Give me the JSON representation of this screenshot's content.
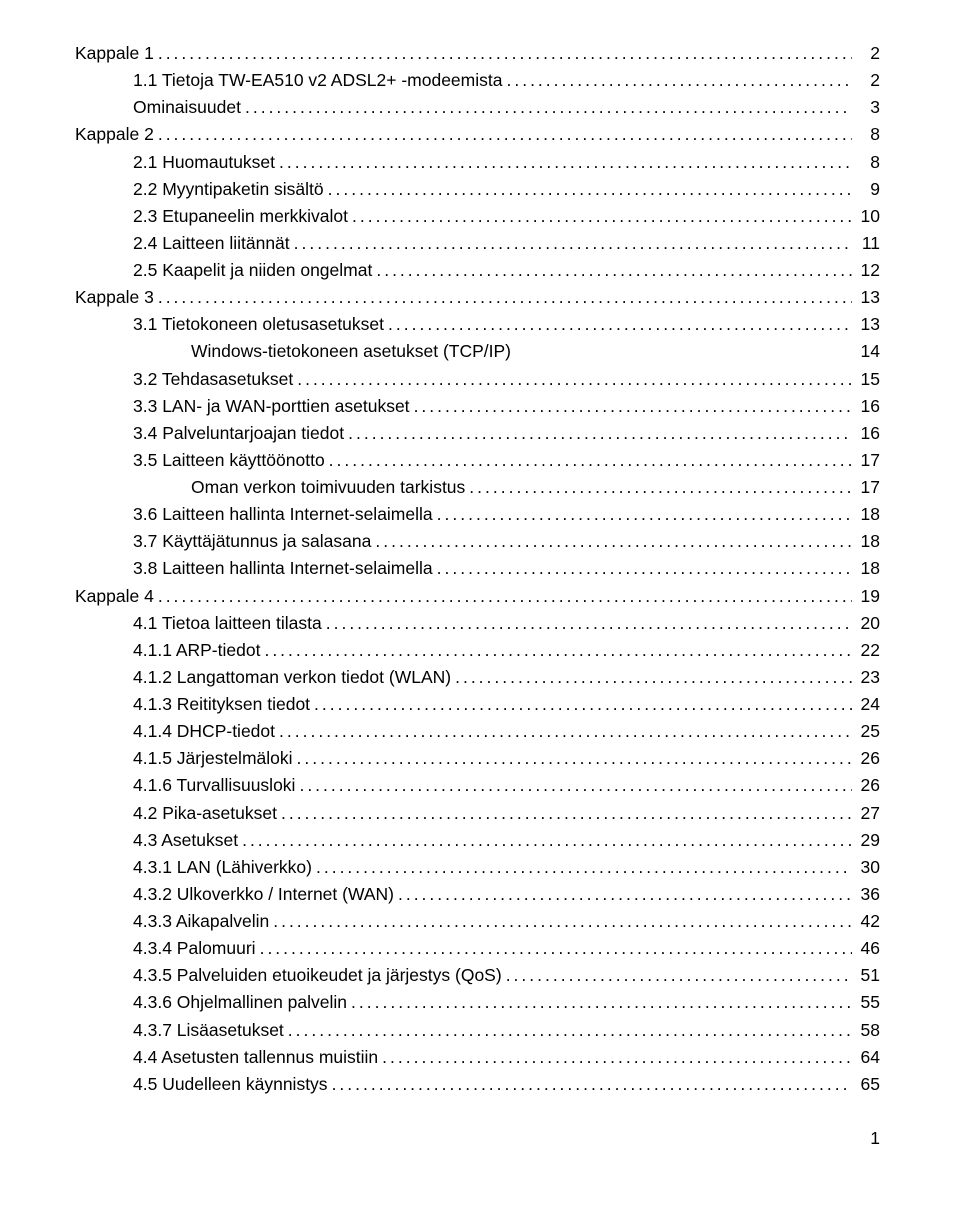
{
  "page_number": "1",
  "font_family": "Verdana, Geneva, sans-serif",
  "text_color": "#000000",
  "background_color": "#ffffff",
  "font_size_pt": 13,
  "entries": [
    {
      "indent": 0,
      "label": "Kappale 1",
      "page": "2",
      "dots": true
    },
    {
      "indent": 1,
      "label": "1.1 Tietoja TW-EA510 v2 ADSL2+ -modeemista",
      "page": "2",
      "dots": true
    },
    {
      "indent": 1,
      "label": "Ominaisuudet",
      "page": "3",
      "dots": true
    },
    {
      "indent": 0,
      "label": "Kappale 2",
      "page": "8",
      "dots": true
    },
    {
      "indent": 1,
      "label": "2.1 Huomautukset",
      "page": "8",
      "dots": true
    },
    {
      "indent": 1,
      "label": "2.2 Myyntipaketin sisältö",
      "page": "9",
      "dots": true
    },
    {
      "indent": 1,
      "label": "2.3 Etupaneelin merkkivalot",
      "page": "10",
      "dots": true
    },
    {
      "indent": 1,
      "label": "2.4 Laitteen liitännät",
      "page": "11",
      "dots": true
    },
    {
      "indent": 1,
      "label": "2.5 Kaapelit ja niiden ongelmat",
      "page": "12",
      "dots": true
    },
    {
      "indent": 0,
      "label": "Kappale 3",
      "page": "13",
      "dots": true
    },
    {
      "indent": 1,
      "label": "3.1 Tietokoneen oletusasetukset",
      "page": "13",
      "dots": true
    },
    {
      "indent": 2,
      "label": "Windows-tietokoneen asetukset (TCP/IP)",
      "page": "14",
      "dots": false
    },
    {
      "indent": 1,
      "label": "3.2 Tehdasasetukset",
      "page": "15",
      "dots": true
    },
    {
      "indent": 1,
      "label": "3.3 LAN- ja WAN-porttien asetukset",
      "page": "16",
      "dots": true
    },
    {
      "indent": 1,
      "label": "3.4 Palveluntarjoajan tiedot",
      "page": "16",
      "dots": true
    },
    {
      "indent": 1,
      "label": "3.5 Laitteen käyttöönotto",
      "page": "17",
      "dots": true
    },
    {
      "indent": 2,
      "label": "Oman verkon toimivuuden tarkistus",
      "page": "17",
      "dots": true
    },
    {
      "indent": 1,
      "label": "3.6 Laitteen hallinta Internet-selaimella",
      "page": "18",
      "dots": true
    },
    {
      "indent": 1,
      "label": "3.7 Käyttäjätunnus ja salasana",
      "page": "18",
      "dots": true
    },
    {
      "indent": 1,
      "label": "3.8 Laitteen hallinta Internet-selaimella",
      "page": "18",
      "dots": true
    },
    {
      "indent": 0,
      "label": "Kappale 4",
      "page": "19",
      "dots": true
    },
    {
      "indent": 1,
      "label": "4.1 Tietoa laitteen tilasta",
      "page": "20",
      "dots": true
    },
    {
      "indent": 1,
      "label": "4.1.1 ARP-tiedot",
      "page": "22",
      "dots": true
    },
    {
      "indent": 1,
      "label": "4.1.2 Langattoman verkon tiedot (WLAN)",
      "page": "23",
      "dots": true
    },
    {
      "indent": 1,
      "label": "4.1.3 Reitityksen tiedot",
      "page": "24",
      "dots": true
    },
    {
      "indent": 1,
      "label": "4.1.4 DHCP-tiedot",
      "page": "25",
      "dots": true
    },
    {
      "indent": 1,
      "label": "4.1.5 Järjestelmäloki",
      "page": "26",
      "dots": true
    },
    {
      "indent": 1,
      "label": "4.1.6 Turvallisuusloki",
      "page": "26",
      "dots": true
    },
    {
      "indent": 1,
      "label": "4.2 Pika-asetukset",
      "page": "27",
      "dots": true
    },
    {
      "indent": 1,
      "label": "4.3 Asetukset",
      "page": "29",
      "dots": true
    },
    {
      "indent": 1,
      "label": "4.3.1 LAN (Lähiverkko)",
      "page": "30",
      "dots": true
    },
    {
      "indent": 1,
      "label": "4.3.2 Ulkoverkko / Internet (WAN)",
      "page": "36",
      "dots": true
    },
    {
      "indent": 1,
      "label": "4.3.3 Aikapalvelin",
      "page": "42",
      "dots": true
    },
    {
      "indent": 1,
      "label": "4.3.4 Palomuuri",
      "page": "46",
      "dots": true
    },
    {
      "indent": 1,
      "label": "4.3.5 Palveluiden etuoikeudet ja järjestys (QoS)",
      "page": "51",
      "dots": true
    },
    {
      "indent": 1,
      "label": "4.3.6 Ohjelmallinen palvelin",
      "page": "55",
      "dots": true
    },
    {
      "indent": 1,
      "label": "4.3.7 Lisäasetukset",
      "page": "58",
      "dots": true
    },
    {
      "indent": 1,
      "label": "4.4 Asetusten tallennus muistiin",
      "page": "64",
      "dots": true
    },
    {
      "indent": 1,
      "label": "4.5 Uudelleen käynnistys",
      "page": "65",
      "dots": true
    }
  ]
}
